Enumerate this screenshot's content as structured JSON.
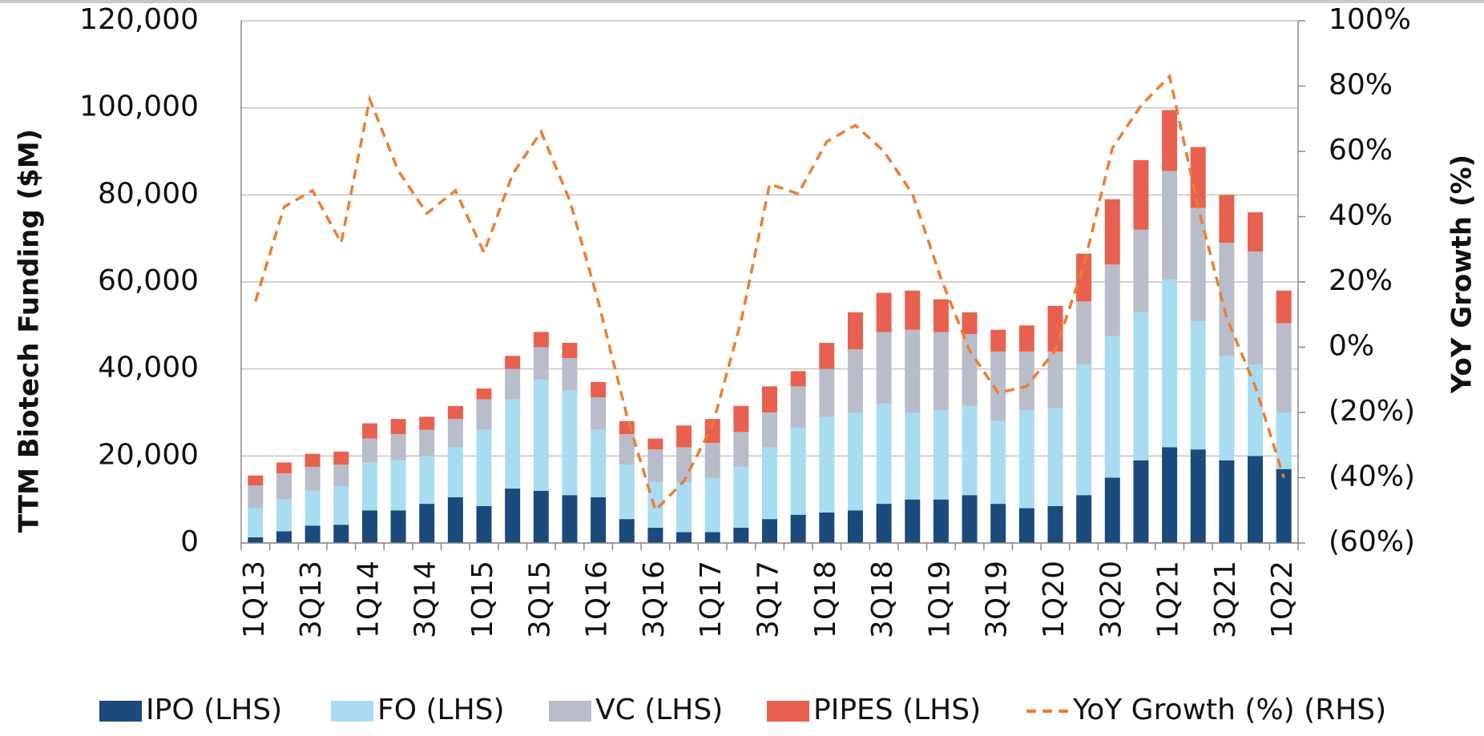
{
  "chart_data": {
    "type": "bar",
    "y_label": "TTM Biotech Funding ($M)",
    "y2_label": "YoY Growth (%)",
    "categories": [
      "1Q13",
      null,
      "3Q13",
      null,
      "1Q14",
      null,
      "3Q14",
      null,
      "1Q15",
      null,
      "3Q15",
      null,
      "1Q16",
      null,
      "3Q16",
      null,
      "1Q17",
      null,
      "3Q17",
      null,
      "1Q18",
      null,
      "3Q18",
      null,
      "1Q19",
      null,
      "3Q19",
      null,
      "1Q20",
      null,
      "3Q20",
      null,
      "1Q21",
      null,
      "3Q21",
      null,
      "1Q22"
    ],
    "stacked": true,
    "series": [
      {
        "name": "IPO (LHS)",
        "color": "#1b4a7c",
        "values": [
          1300,
          2700,
          4000,
          4200,
          7500,
          7500,
          9000,
          10500,
          8500,
          12500,
          12000,
          11000,
          10500,
          5500,
          3500,
          2500,
          2500,
          3500,
          5500,
          6500,
          7000,
          7500,
          9000,
          10000,
          10000,
          11000,
          9000,
          8000,
          8500,
          11000,
          15000,
          19000,
          22000,
          21500,
          19000,
          20000,
          17000
        ]
      },
      {
        "name": "FO (LHS)",
        "color": "#a9dcf1",
        "values": [
          6700,
          7300,
          8000,
          8800,
          11000,
          11500,
          11000,
          11500,
          17500,
          20500,
          25500,
          24000,
          15500,
          12500,
          10500,
          11500,
          12500,
          14000,
          16500,
          20000,
          22000,
          22500,
          23000,
          20000,
          20500,
          20500,
          19000,
          22500,
          22500,
          30000,
          32500,
          34000,
          38500,
          29500,
          24000,
          21000,
          13000
        ]
      },
      {
        "name": "VC (LHS)",
        "color": "#b9bdc9",
        "values": [
          5200,
          6000,
          5500,
          5000,
          5500,
          6000,
          6000,
          6500,
          7000,
          7000,
          7500,
          7500,
          7500,
          7000,
          7500,
          8000,
          8000,
          8000,
          8000,
          9500,
          11000,
          14500,
          16500,
          19000,
          18000,
          16500,
          16000,
          13500,
          13000,
          14500,
          16500,
          19000,
          25000,
          26000,
          26000,
          26000,
          20500
        ]
      },
      {
        "name": "PIPES (LHS)",
        "color": "#e8604f",
        "values": [
          2300,
          2500,
          3000,
          3000,
          3500,
          3500,
          3000,
          3000,
          2500,
          3000,
          3500,
          3500,
          3500,
          3000,
          2500,
          5000,
          5500,
          6000,
          6000,
          3500,
          6000,
          8500,
          9000,
          9000,
          7500,
          5000,
          5000,
          6000,
          10500,
          11000,
          15000,
          16000,
          14000,
          14000,
          11000,
          9000,
          7500
        ]
      },
      {
        "name": "YoY Growth (%) (RHS)",
        "type": "line",
        "axis": "y2",
        "color": "#ed7d31",
        "values": [
          14,
          43,
          48,
          32,
          76,
          54,
          41,
          48,
          29,
          53,
          66,
          45,
          14,
          -21,
          -50,
          -41,
          -24,
          8,
          50,
          47,
          63,
          68,
          60,
          47,
          21,
          -1,
          -14,
          -12,
          -1,
          25,
          61,
          74,
          83,
          43,
          9,
          -12,
          -40
        ]
      }
    ],
    "ylim": [
      0,
      120000
    ],
    "yticks": [
      0,
      {
        "value": 20000,
        "label": "20,000"
      },
      {
        "value": 40000,
        "label": "40,000"
      },
      {
        "value": 60000,
        "label": "60,000"
      },
      {
        "value": 80000,
        "label": "80,000"
      },
      {
        "value": 100000,
        "label": "100,000"
      },
      {
        "value": 120000,
        "label": "120,000"
      }
    ],
    "y2lim": [
      -60,
      100
    ],
    "y2ticks": [
      {
        "value": -60,
        "label": "(60%)"
      },
      {
        "value": -40,
        "label": "(40%)"
      },
      {
        "value": -20,
        "label": "(20%)"
      },
      {
        "value": 0,
        "label": "0%"
      },
      {
        "value": 20,
        "label": "20%"
      },
      {
        "value": 40,
        "label": "40%"
      },
      {
        "value": 60,
        "label": "60%"
      },
      {
        "value": 80,
        "label": "80%"
      },
      {
        "value": 100,
        "label": "100%"
      }
    ],
    "grid": true,
    "legend": "bottom"
  }
}
